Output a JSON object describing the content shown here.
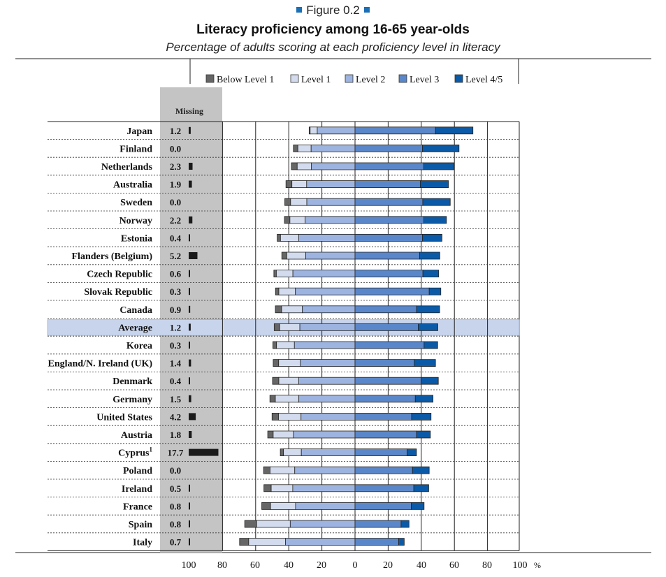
{
  "figure_label": "Figure 0.2",
  "colors": {
    "below_level_1": "#666666",
    "level_1": "#d3dcee",
    "level_2": "#9db4e0",
    "level_3": "#5a87c9",
    "level_45": "#0b5aa8",
    "missing_bar": "#1a1a1a",
    "missing_panel": "#c4c4c4",
    "average_highlight": "#c7d4ec",
    "accent": "#1a6fb5"
  },
  "chart_data": {
    "type": "bar",
    "stacked": true,
    "diverging": true,
    "title": "Literacy proficiency among 16-65 year-olds",
    "subtitle": "Percentage of adults scoring at each proficiency level in literacy",
    "missing_header": "Missing",
    "unit": "%",
    "x_ticks": [
      "100",
      "80",
      "60",
      "40",
      "20",
      "0",
      "20",
      "40",
      "60",
      "80",
      "100"
    ],
    "xlim": [
      -100,
      100
    ],
    "missing_xlim": [
      100,
      80
    ],
    "legend": [
      "Below Level 1",
      "Level 1",
      "Level 2",
      "Level 3",
      "Level 4/5"
    ],
    "legend_position": "top",
    "highlight_row": "Average",
    "rows": [
      {
        "country": "Japan",
        "missing": "1.2",
        "below1": 0.6,
        "level1": 4.3,
        "level2": 22.8,
        "level3": 48.6,
        "level45": 22.6
      },
      {
        "country": "Finland",
        "missing": "0.0",
        "below1": 2.7,
        "level1": 8.0,
        "level2": 26.5,
        "level3": 40.7,
        "level45": 22.1
      },
      {
        "country": "Netherlands",
        "missing": "2.3",
        "below1": 3.5,
        "level1": 8.5,
        "level2": 26.4,
        "level3": 41.5,
        "level45": 18.2
      },
      {
        "country": "Australia",
        "missing": "1.9",
        "below1": 3.6,
        "level1": 8.9,
        "level2": 29.2,
        "level3": 39.4,
        "level45": 17.0
      },
      {
        "country": "Sweden",
        "missing": "0.0",
        "below1": 3.5,
        "level1": 9.8,
        "level2": 29.1,
        "level3": 40.9,
        "level45": 16.6
      },
      {
        "country": "Norway",
        "missing": "2.2",
        "below1": 3.3,
        "level1": 9.2,
        "level2": 30.1,
        "level3": 41.6,
        "level45": 13.6
      },
      {
        "country": "Estonia",
        "missing": "0.4",
        "below1": 2.0,
        "level1": 11.0,
        "level2": 34.0,
        "level3": 40.7,
        "level45": 11.8
      },
      {
        "country": "Flanders (Belgium)",
        "missing": "5.2",
        "below1": 3.0,
        "level1": 11.5,
        "level2": 29.7,
        "level3": 39.0,
        "level45": 12.2
      },
      {
        "country": "Czech Republic",
        "missing": "0.6",
        "below1": 1.5,
        "level1": 10.0,
        "level2": 37.5,
        "level3": 41.0,
        "level45": 9.5
      },
      {
        "country": "Slovak Republic",
        "missing": "0.3",
        "below1": 2.0,
        "level1": 10.0,
        "level2": 36.0,
        "level3": 44.8,
        "level45": 7.0
      },
      {
        "country": "Canada",
        "missing": "0.9",
        "below1": 3.8,
        "level1": 12.5,
        "level2": 31.8,
        "level3": 37.2,
        "level45": 13.9
      },
      {
        "country": "Average",
        "missing": "1.2",
        "below1": 3.3,
        "level1": 12.2,
        "level2": 33.3,
        "level3": 38.2,
        "level45": 11.8
      },
      {
        "country": "Korea",
        "missing": "0.3",
        "below1": 2.2,
        "level1": 10.8,
        "level2": 36.6,
        "level3": 41.7,
        "level45": 8.2
      },
      {
        "country": "England/N. Ireland (UK)",
        "missing": "1.4",
        "below1": 3.3,
        "level1": 13.1,
        "level2": 33.0,
        "level3": 35.8,
        "level45": 12.8
      },
      {
        "country": "Denmark",
        "missing": "0.4",
        "below1": 3.8,
        "level1": 12.0,
        "level2": 34.0,
        "level3": 39.9,
        "level45": 10.4
      },
      {
        "country": "Germany",
        "missing": "1.5",
        "below1": 3.3,
        "level1": 14.2,
        "level2": 33.9,
        "level3": 36.4,
        "level45": 10.7
      },
      {
        "country": "United States",
        "missing": "4.2",
        "below1": 3.9,
        "level1": 13.6,
        "level2": 32.6,
        "level3": 34.2,
        "level45": 11.7
      },
      {
        "country": "Austria",
        "missing": "1.8",
        "below1": 3.3,
        "level1": 12.2,
        "level2": 37.2,
        "level3": 37.2,
        "level45": 8.3
      },
      {
        "country": "Cyprus",
        "missing_footnote": "1",
        "missing": "17.7",
        "below1": 1.9,
        "level1": 10.8,
        "level2": 32.4,
        "level3": 31.4,
        "level45": 5.7
      },
      {
        "country": "Poland",
        "missing": "0.0",
        "below1": 3.9,
        "level1": 14.9,
        "level2": 36.4,
        "level3": 34.7,
        "level45": 10.1
      },
      {
        "country": "Ireland",
        "missing": "0.5",
        "below1": 4.4,
        "level1": 13.0,
        "level2": 37.6,
        "level3": 35.5,
        "level45": 9.0
      },
      {
        "country": "France",
        "missing": "0.8",
        "below1": 5.3,
        "level1": 15.1,
        "level2": 35.9,
        "level3": 34.0,
        "level45": 7.7
      },
      {
        "country": "Spain",
        "missing": "0.8",
        "below1": 7.2,
        "level1": 20.3,
        "level2": 39.1,
        "level3": 27.8,
        "level45": 4.8
      },
      {
        "country": "Italy",
        "missing": "0.7",
        "below1": 5.5,
        "level1": 22.2,
        "level2": 42.0,
        "level3": 26.4,
        "level45": 3.3
      }
    ]
  }
}
